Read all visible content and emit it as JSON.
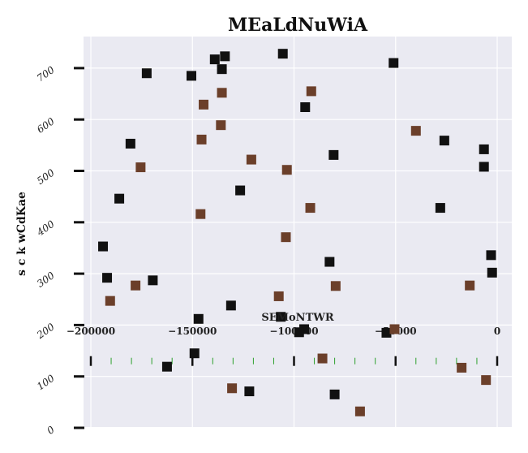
{
  "chart_data": {
    "type": "scatter",
    "title": "MEaLdNuWiA",
    "xlabel": "SEMoNTWR",
    "ylabel": "s c k wCdKae",
    "xlim": [
      -200000,
      0
    ],
    "ylim": [
      0,
      750
    ],
    "x_ticks": [
      -200000,
      -150000,
      -100000,
      -50000,
      0
    ],
    "x_tick_labels": [
      "−200000",
      "−150000",
      "−100000",
      "−50000",
      "0"
    ],
    "y_ticks": [
      0,
      100,
      200,
      300,
      400,
      500,
      600,
      700
    ],
    "y_tick_labels": [
      "0",
      "100",
      "200",
      "300",
      "400",
      "500",
      "600",
      "700"
    ],
    "grid": true,
    "background_color": "#eaeaf2",
    "series": [
      {
        "color": "#111111",
        "points": [
          [
            -172500,
            690
          ],
          [
            -150500,
            685
          ],
          [
            -139000,
            717
          ],
          [
            -134000,
            723
          ],
          [
            -135500,
            698
          ],
          [
            -105500,
            728
          ],
          [
            -51000,
            710
          ],
          [
            -94500,
            624
          ],
          [
            -80500,
            531
          ],
          [
            -180500,
            553
          ],
          [
            -186000,
            446
          ],
          [
            -126500,
            462
          ],
          [
            -26000,
            559
          ],
          [
            -6500,
            542
          ],
          [
            -6500,
            508
          ],
          [
            -28000,
            428
          ],
          [
            -194000,
            353
          ],
          [
            -192000,
            292
          ],
          [
            -169500,
            287
          ],
          [
            -82500,
            323
          ],
          [
            -3000,
            336
          ],
          [
            -2500,
            302
          ],
          [
            -147000,
            212
          ],
          [
            -131000,
            238
          ],
          [
            -106500,
            216
          ],
          [
            -95000,
            192
          ],
          [
            -97500,
            186
          ],
          [
            -54500,
            185
          ],
          [
            -149000,
            145
          ],
          [
            -162500,
            119
          ],
          [
            -122000,
            71
          ],
          [
            -80000,
            65
          ]
        ]
      },
      {
        "color": "#6b3f2a",
        "points": [
          [
            -144500,
            629
          ],
          [
            -135500,
            652
          ],
          [
            -91500,
            655
          ],
          [
            -136000,
            589
          ],
          [
            -145500,
            561
          ],
          [
            -40000,
            578
          ],
          [
            -175500,
            507
          ],
          [
            -121000,
            522
          ],
          [
            -103500,
            502
          ],
          [
            -146000,
            416
          ],
          [
            -92000,
            428
          ],
          [
            -104000,
            371
          ],
          [
            -178000,
            277
          ],
          [
            -79500,
            276
          ],
          [
            -13500,
            277
          ],
          [
            -107500,
            256
          ],
          [
            -190500,
            247
          ],
          [
            -50500,
            192
          ],
          [
            -86000,
            135
          ],
          [
            -17500,
            117
          ],
          [
            -5500,
            93
          ],
          [
            -130500,
            77
          ],
          [
            -67500,
            32
          ]
        ]
      }
    ],
    "secondary_axis": {
      "y_value": 130,
      "major_ticks": [
        -200000,
        -150000,
        -100000,
        -50000,
        0
      ],
      "minor_tick_color": "#2ca02c"
    }
  }
}
